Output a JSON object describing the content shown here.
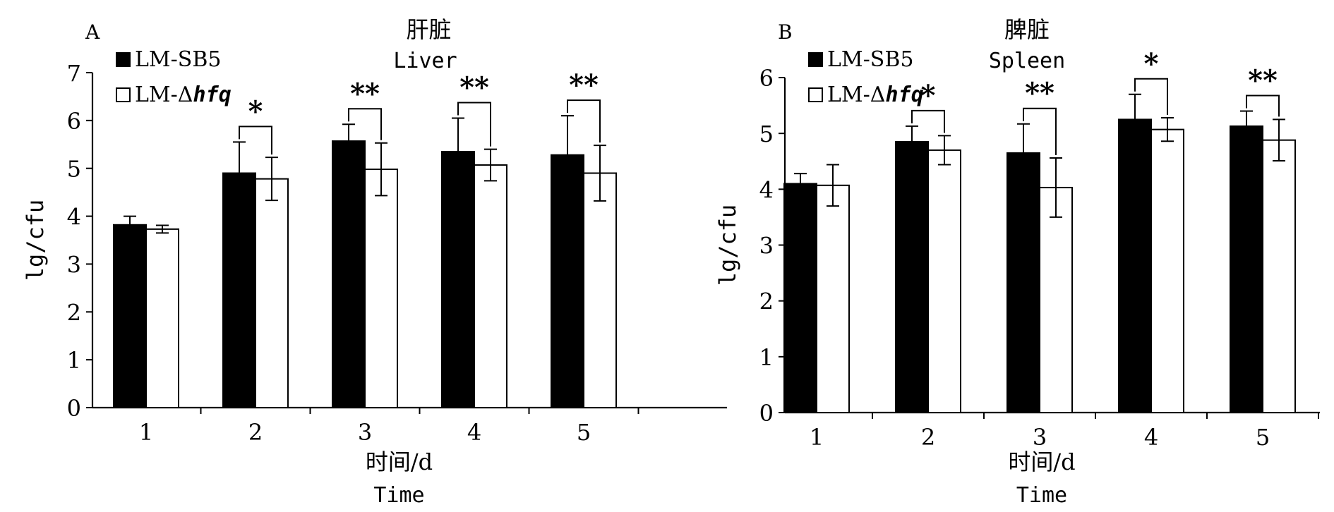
{
  "chart_data": [
    {
      "type": "bar",
      "panel_label": "A",
      "title": "肝脏",
      "subtitle": "Liver",
      "xlabel": "时间/d",
      "xlabel_en": "Time",
      "ylabel": "lg/cfu",
      "categories": [
        "1",
        "2",
        "3",
        "4",
        "5"
      ],
      "ylim": [
        0,
        7
      ],
      "yticks": [
        0,
        1,
        2,
        3,
        4,
        5,
        6,
        7
      ],
      "legend": {
        "position": "top-left",
        "items": [
          {
            "prefix": "LM-SB5",
            "italic": ""
          },
          {
            "prefix": "LM-Δ",
            "italic": "hfq"
          }
        ]
      },
      "series": [
        {
          "name": "LM-SB5",
          "fill": "#000000",
          "values": [
            3.82,
            4.9,
            5.57,
            5.35,
            5.28
          ],
          "errors": [
            0.18,
            0.65,
            0.35,
            0.7,
            0.82
          ]
        },
        {
          "name": "LM-Δhfq",
          "fill": "#ffffff",
          "values": [
            3.73,
            4.78,
            4.98,
            5.07,
            4.9
          ],
          "errors": [
            0.08,
            0.45,
            0.55,
            0.33,
            0.58
          ]
        }
      ],
      "significance": [
        "",
        "*",
        "**",
        "**",
        "**"
      ]
    },
    {
      "type": "bar",
      "panel_label": "B",
      "title": "脾脏",
      "subtitle": "Spleen",
      "xlabel": "时间/d",
      "xlabel_en": "Time",
      "ylabel": "lg/cfu",
      "categories": [
        "1",
        "2",
        "3",
        "4",
        "5"
      ],
      "ylim": [
        0,
        6
      ],
      "yticks": [
        0,
        1,
        2,
        3,
        4,
        5,
        6
      ],
      "legend": {
        "position": "top-left",
        "items": [
          {
            "prefix": "LM-SB5",
            "italic": ""
          },
          {
            "prefix": "LM-Δ",
            "italic": "hfq"
          }
        ]
      },
      "series": [
        {
          "name": "LM-SB5",
          "fill": "#000000",
          "values": [
            4.1,
            4.85,
            4.65,
            5.25,
            5.13
          ],
          "errors": [
            0.18,
            0.28,
            0.52,
            0.45,
            0.27
          ]
        },
        {
          "name": "LM-Δhfq",
          "fill": "#ffffff",
          "values": [
            4.07,
            4.7,
            4.03,
            5.07,
            4.88
          ],
          "errors": [
            0.37,
            0.26,
            0.53,
            0.21,
            0.37
          ]
        }
      ],
      "significance": [
        "",
        "*",
        "**",
        "*",
        "**"
      ]
    }
  ]
}
